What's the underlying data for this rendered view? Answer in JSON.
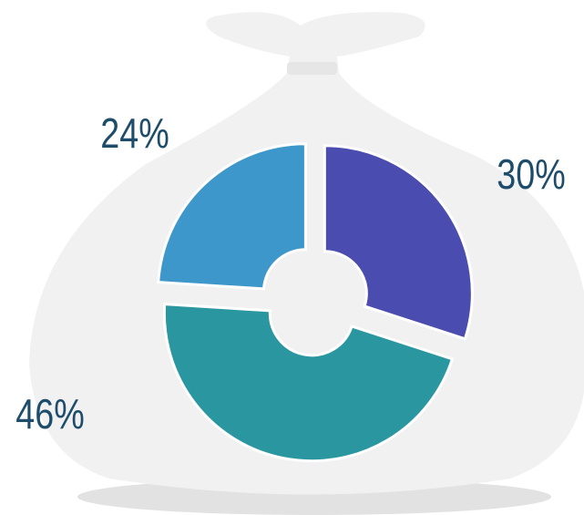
{
  "chart_data": {
    "type": "pie",
    "values": [
      30,
      46,
      24
    ],
    "value_labels": [
      "30%",
      "46%",
      "24%"
    ],
    "colors": [
      "#4b4cb0",
      "#2a97a0",
      "#3d97cb"
    ]
  }
}
